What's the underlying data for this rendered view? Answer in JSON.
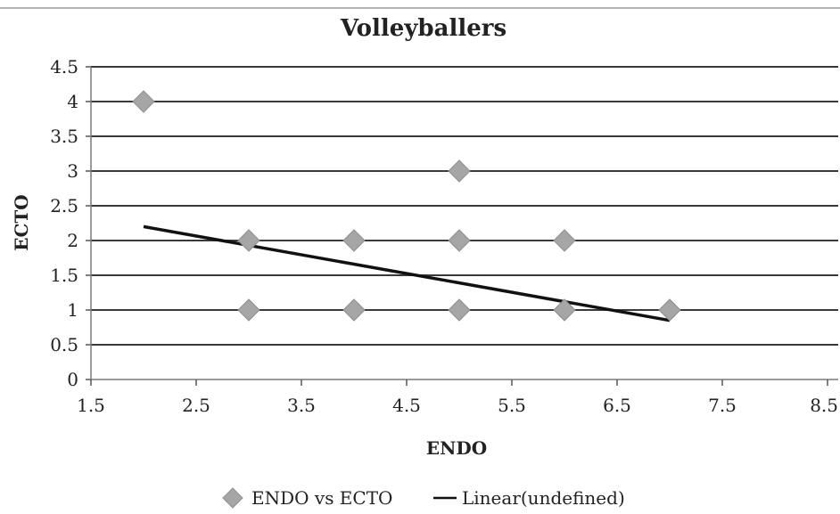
{
  "chart_data": {
    "type": "scatter",
    "title": "Volleyballers",
    "xlabel": "ENDO",
    "ylabel": "ECTO",
    "xlim": [
      1.5,
      8.5
    ],
    "ylim": [
      0,
      4.5
    ],
    "x_ticks": [
      "1.5",
      "2.5",
      "3.5",
      "4.5",
      "5.5",
      "6.5",
      "7.5",
      "8.5"
    ],
    "y_ticks": [
      "0",
      "0.5",
      "1",
      "1.5",
      "2",
      "2.5",
      "3",
      "3.5",
      "4",
      "4.5"
    ],
    "grid": "horizontal",
    "legend_position": "bottom",
    "series": [
      {
        "name": "ENDO vs ECTO",
        "marker": "diamond",
        "color": "#a6a6a6",
        "points": [
          {
            "x": 2,
            "y": 4
          },
          {
            "x": 3,
            "y": 2
          },
          {
            "x": 3,
            "y": 1
          },
          {
            "x": 4,
            "y": 2
          },
          {
            "x": 4,
            "y": 1
          },
          {
            "x": 5,
            "y": 3
          },
          {
            "x": 5,
            "y": 2
          },
          {
            "x": 5,
            "y": 1
          },
          {
            "x": 6,
            "y": 2
          },
          {
            "x": 6,
            "y": 1
          },
          {
            "x": 7,
            "y": 1
          }
        ]
      }
    ],
    "trendline": {
      "name": "Linear(undefined)",
      "color": "#111111",
      "points": [
        {
          "x": 2,
          "y": 2.2
        },
        {
          "x": 7,
          "y": 0.85
        }
      ]
    }
  }
}
